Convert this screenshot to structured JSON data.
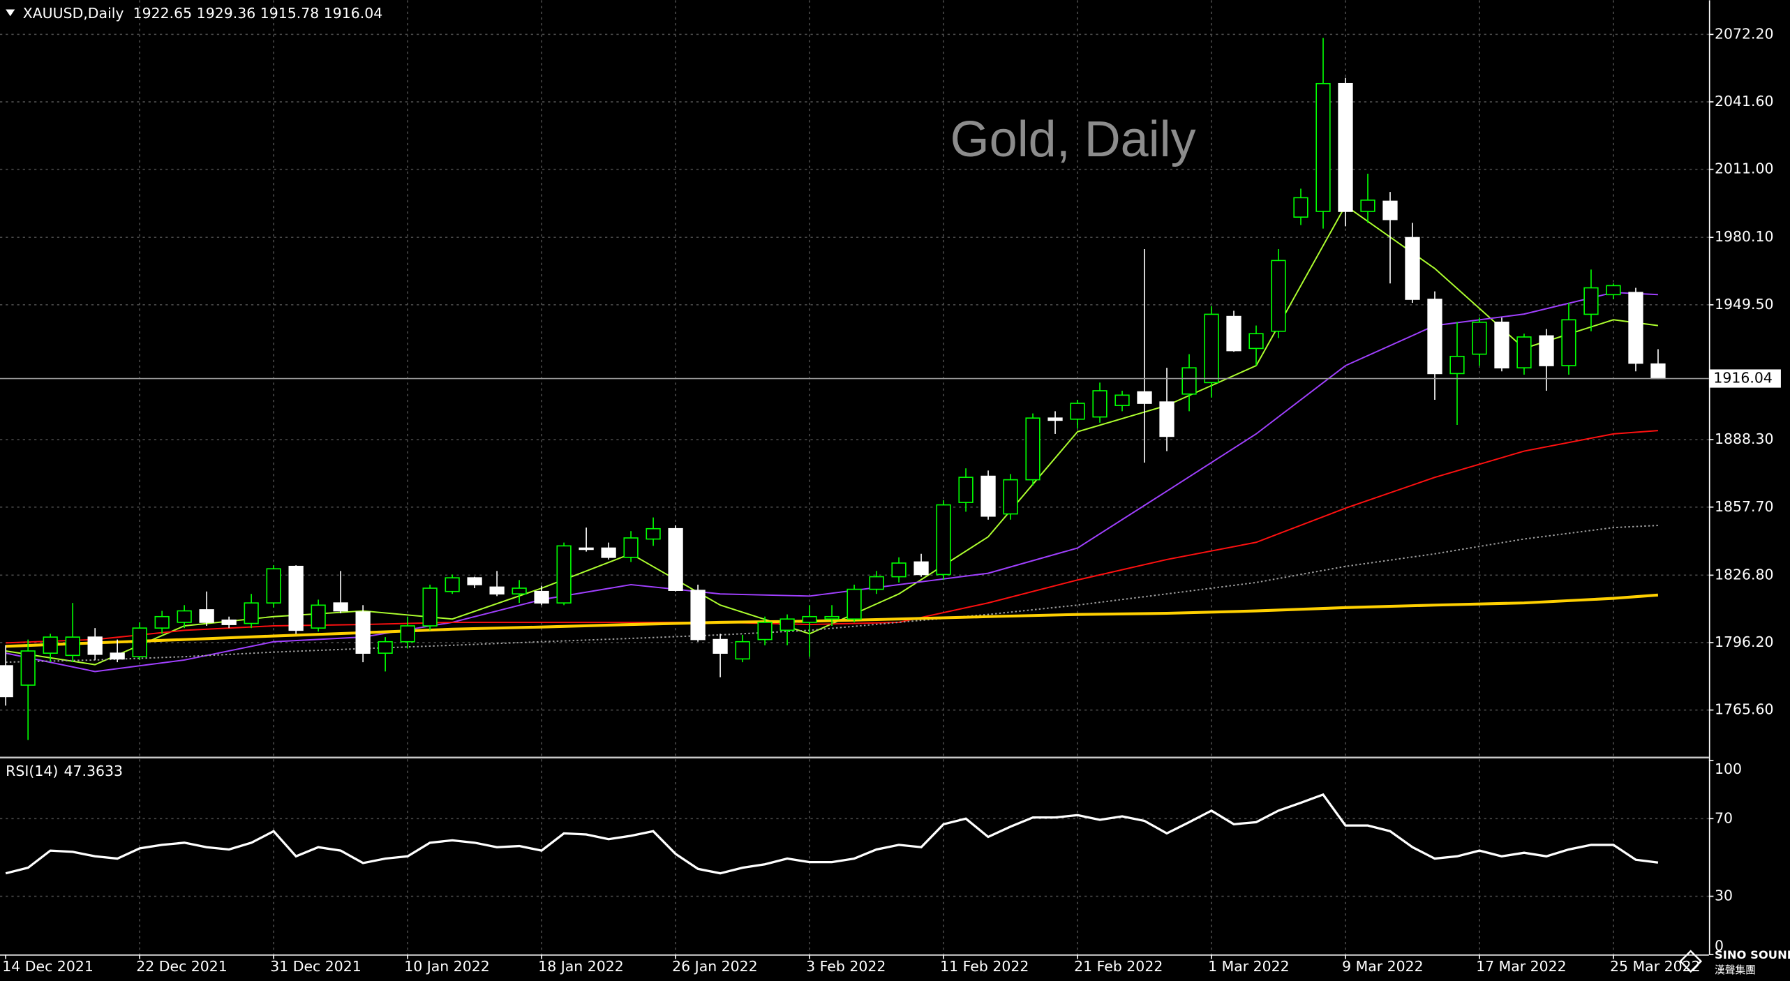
{
  "chart_data": [
    {
      "type": "candlestick",
      "title": "Gold, Daily",
      "symbol": "XAUUSD,Daily",
      "categories": [
        "14 Dec 2021",
        null,
        null,
        null,
        null,
        null,
        "22 Dec 2021",
        null,
        null,
        null,
        null,
        null,
        "31 Dec 2021",
        null,
        null,
        null,
        null,
        null,
        "10 Jan 2022",
        null,
        null,
        null,
        null,
        null,
        "18 Jan 2022",
        null,
        null,
        null,
        null,
        null,
        "26 Jan 2022",
        null,
        null,
        null,
        null,
        null,
        "3 Feb 2022",
        null,
        null,
        null,
        null,
        null,
        "11 Feb 2022",
        null,
        null,
        null,
        null,
        null,
        "21 Feb 2022",
        null,
        null,
        null,
        null,
        null,
        "1 Mar 2022",
        null,
        null,
        null,
        null,
        null,
        "9 Mar 2022",
        null,
        null,
        null,
        null,
        null,
        "17 Mar 2022",
        null,
        null,
        null,
        null,
        null,
        "25 Mar 2022",
        null,
        null
      ],
      "open": [
        1785.7,
        1776.9,
        1791.4,
        1790.4,
        1798.7,
        1791.4,
        1789.8,
        1802.8,
        1805.4,
        1811.1,
        1806.4,
        1804.9,
        1814.2,
        1830.8,
        1802.8,
        1814.2,
        1810.1,
        1791.4,
        1796.6,
        1803.8,
        1819.4,
        1825.6,
        1821.4,
        1818.3,
        1819.4,
        1814.2,
        1839.1,
        1839.1,
        1834.9,
        1843.2,
        1847.9,
        1819.9,
        1797.6,
        1788.8,
        1797.6,
        1801.8,
        1805.4,
        1806.9,
        1806.9,
        1820.4,
        1826.1,
        1832.8,
        1827.1,
        1859.8,
        1871.7,
        1854.6,
        1870.1,
        1898.1,
        1897.6,
        1898.6,
        1903.8,
        1910.0,
        1905.4,
        1909.0,
        1914.2,
        1944.2,
        1929.7,
        1937.5,
        1989.3,
        1991.9,
        2049.9,
        1991.9,
        1996.5,
        1980.0,
        1952.0,
        1918.3,
        1927.1,
        1941.6,
        1920.9,
        1935.4,
        1921.9,
        1945.2,
        1954.1,
        1955.1,
        1922.65
      ],
      "high": [
        1795.0,
        1797.6,
        1800.2,
        1814.2,
        1802.8,
        1797.6,
        1805.4,
        1810.6,
        1813.2,
        1819.4,
        1808.0,
        1818.3,
        1831.3,
        1831.3,
        1815.7,
        1828.7,
        1813.2,
        1798.7,
        1808.0,
        1822.5,
        1827.1,
        1826.1,
        1828.7,
        1824.6,
        1822.0,
        1841.6,
        1848.4,
        1841.6,
        1846.8,
        1853.0,
        1849.4,
        1822.5,
        1800.2,
        1799.7,
        1808.0,
        1809.0,
        1813.2,
        1813.2,
        1822.5,
        1828.7,
        1834.9,
        1836.5,
        1860.8,
        1875.3,
        1874.3,
        1872.7,
        1900.2,
        1901.2,
        1906.4,
        1914.2,
        1910.5,
        1974.8,
        1920.9,
        1927.1,
        1948.9,
        1946.8,
        1940.1,
        1974.8,
        2002.2,
        2070.6,
        2052.5,
        2009.0,
        2000.7,
        1986.7,
        1955.6,
        1941.6,
        1943.7,
        1943.7,
        1936.4,
        1938.5,
        1950.4,
        1965.5,
        1959.2,
        1957.2,
        1929.36
      ],
      "low": [
        1767.6,
        1752.0,
        1787.3,
        1787.3,
        1788.3,
        1787.3,
        1788.3,
        1800.2,
        1802.8,
        1803.8,
        1802.8,
        1802.8,
        1812.1,
        1800.2,
        1801.2,
        1809.5,
        1787.3,
        1783.1,
        1793.5,
        1801.8,
        1818.3,
        1820.9,
        1817.3,
        1814.2,
        1813.2,
        1813.2,
        1837.5,
        1833.9,
        1832.8,
        1840.1,
        1819.4,
        1796.6,
        1780.5,
        1787.3,
        1795.0,
        1795.0,
        1789.8,
        1803.8,
        1805.4,
        1818.3,
        1823.5,
        1826.1,
        1824.6,
        1855.6,
        1852.0,
        1852.0,
        1867.5,
        1890.9,
        1893.4,
        1896.0,
        1901.2,
        1877.9,
        1883.1,
        1901.2,
        1907.4,
        1928.2,
        1921.9,
        1934.4,
        1985.7,
        1984.1,
        1985.1,
        1986.7,
        1959.2,
        1950.4,
        1906.4,
        1895.0,
        1921.9,
        1919.3,
        1917.8,
        1910.5,
        1917.8,
        1937.5,
        1952.0,
        1919.3,
        1915.78
      ],
      "close": [
        1771.7,
        1792.4,
        1798.7,
        1798.7,
        1790.9,
        1788.8,
        1802.8,
        1808.0,
        1810.6,
        1805.4,
        1804.4,
        1814.2,
        1829.7,
        1801.8,
        1813.2,
        1810.6,
        1791.4,
        1796.6,
        1803.8,
        1820.9,
        1825.6,
        1822.5,
        1818.3,
        1820.9,
        1814.2,
        1840.1,
        1838.5,
        1834.9,
        1843.7,
        1847.9,
        1819.9,
        1797.6,
        1791.4,
        1796.6,
        1805.4,
        1806.9,
        1808.0,
        1808.0,
        1820.4,
        1826.1,
        1832.3,
        1827.1,
        1858.7,
        1871.2,
        1853.6,
        1870.1,
        1898.1,
        1897.1,
        1904.8,
        1910.5,
        1908.5,
        1904.8,
        1889.8,
        1920.9,
        1945.2,
        1928.7,
        1936.4,
        1969.6,
        1998.1,
        2049.9,
        1991.9,
        1997.0,
        1988.2,
        1952.0,
        1918.3,
        1926.1,
        1941.6,
        1920.9,
        1934.9,
        1921.9,
        1942.7,
        1957.2,
        1958.2,
        1923.0,
        1916.04
      ],
      "up_color": "#00ff00",
      "down_color": "#ffffff",
      "overlays": [
        {
          "color": "#adff2f",
          "dash": false,
          "x": [
            0,
            4,
            8,
            12,
            16,
            20,
            24,
            28,
            32,
            36,
            40,
            44,
            48,
            52,
            56,
            60,
            64,
            68,
            72,
            74
          ],
          "values": [
            1792.4,
            1786.2,
            1803.8,
            1808.0,
            1810.6,
            1806.9,
            1820.9,
            1836.5,
            1813.2,
            1800.2,
            1818.3,
            1844.2,
            1891.9,
            1903.8,
            1921.9,
            1994.5,
            1966.0,
            1929.7,
            1942.7,
            1940.1
          ]
        },
        {
          "color": "#a040ff",
          "dash": false,
          "x": [
            0,
            4,
            8,
            12,
            16,
            20,
            24,
            28,
            32,
            36,
            40,
            44,
            48,
            52,
            56,
            60,
            64,
            68,
            72,
            74
          ],
          "values": [
            1791.4,
            1783.1,
            1788.3,
            1796.6,
            1798.7,
            1805.4,
            1815.7,
            1822.5,
            1818.3,
            1817.3,
            1822.5,
            1827.7,
            1839.1,
            1864.9,
            1890.9,
            1921.9,
            1940.1,
            1945.3,
            1955.1,
            1954.1
          ]
        },
        {
          "color": "#ff1010",
          "dash": false,
          "x": [
            0,
            4,
            8,
            12,
            16,
            20,
            24,
            28,
            32,
            36,
            40,
            44,
            48,
            52,
            56,
            60,
            64,
            68,
            72,
            74
          ],
          "values": [
            1796.1,
            1797.6,
            1801.8,
            1803.8,
            1804.4,
            1805.4,
            1805.4,
            1805.4,
            1805.4,
            1804.4,
            1805.4,
            1814.2,
            1824.6,
            1833.9,
            1841.7,
            1857.2,
            1871.2,
            1883.1,
            1890.9,
            1892.4
          ]
        },
        {
          "color": "#a0a0a0",
          "dash": true,
          "x": [
            0,
            4,
            8,
            12,
            16,
            20,
            24,
            28,
            32,
            36,
            40,
            44,
            48,
            52,
            56,
            60,
            64,
            68,
            72,
            74
          ],
          "values": [
            1787.3,
            1788.3,
            1789.8,
            1791.9,
            1793.5,
            1795.0,
            1796.6,
            1798.1,
            1799.7,
            1801.8,
            1805.4,
            1809.0,
            1813.2,
            1818.3,
            1823.5,
            1830.8,
            1836.5,
            1843.2,
            1848.4,
            1849.4
          ]
        },
        {
          "color": "#ffd000",
          "dash": false,
          "x": [
            0,
            4,
            8,
            12,
            16,
            20,
            24,
            28,
            32,
            36,
            40,
            44,
            48,
            52,
            56,
            60,
            64,
            68,
            72,
            74
          ],
          "values": [
            1794.5,
            1796.1,
            1797.6,
            1799.2,
            1800.7,
            1802.3,
            1803.3,
            1804.4,
            1805.4,
            1805.9,
            1806.9,
            1808.0,
            1809.0,
            1809.5,
            1810.6,
            1812.1,
            1813.2,
            1814.2,
            1816.3,
            1817.8
          ]
        }
      ],
      "ylim": [
        1744.8,
        2087.7
      ],
      "yticks": [
        {
          "value": 1765.6,
          "label": "1765.60"
        },
        {
          "value": 1796.2,
          "label": "1796.20"
        },
        {
          "value": 1826.8,
          "label": "1826.80"
        },
        {
          "value": 1857.7,
          "label": "1857.70"
        },
        {
          "value": 1888.3,
          "label": "1888.30"
        },
        {
          "value": 1949.5,
          "label": "1949.50"
        },
        {
          "value": 1980.1,
          "label": "1980.10"
        },
        {
          "value": 2011.0,
          "label": "2011.00"
        },
        {
          "value": 2041.6,
          "label": "2041.60"
        },
        {
          "value": 2072.2,
          "label": "2072.20"
        }
      ],
      "last_price": 1916.04,
      "grid": true
    },
    {
      "type": "line",
      "title": "RSI(14)",
      "color": "#ffffff",
      "values": [
        41.8,
        44.7,
        53.5,
        52.9,
        50.6,
        49.4,
        54.7,
        56.5,
        57.6,
        55.3,
        54.1,
        57.6,
        63.5,
        50.6,
        55.3,
        53.5,
        47.1,
        49.4,
        50.6,
        57.6,
        58.8,
        57.6,
        55.3,
        55.9,
        53.5,
        62.4,
        61.8,
        59.4,
        61.2,
        63.5,
        51.8,
        44.1,
        41.8,
        44.7,
        46.5,
        49.4,
        47.6,
        47.6,
        49.4,
        54.1,
        56.5,
        55.3,
        67.1,
        70.0,
        60.6,
        65.9,
        70.6,
        70.6,
        71.8,
        69.4,
        71.2,
        68.8,
        62.4,
        68.2,
        74.1,
        67.1,
        68.2,
        74.1,
        78.2,
        82.4,
        66.5,
        66.5,
        63.5,
        55.3,
        49.4,
        50.6,
        53.5,
        50.6,
        52.4,
        50.6,
        54.1,
        56.5,
        56.5,
        48.8,
        47.3633
      ],
      "ylim": [
        0,
        100
      ],
      "yticks": [
        0,
        30,
        70,
        100
      ],
      "grid": true
    }
  ],
  "logo": {
    "name": "SINO SOUND",
    "subname": "漢聲集團"
  }
}
